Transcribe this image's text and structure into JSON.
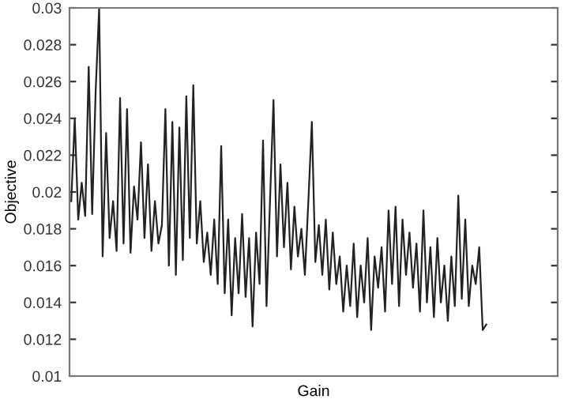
{
  "chart_data": {
    "type": "line",
    "xlabel": "Gain",
    "ylabel": "Objective",
    "categories": [
      null,
      null,
      null,
      null,
      null,
      null,
      null,
      null,
      null,
      null,
      null,
      null,
      null,
      null,
      null,
      null,
      null,
      null,
      null,
      null,
      null,
      null,
      null,
      null,
      null,
      null,
      null,
      null,
      null,
      null,
      null,
      null,
      null,
      null,
      null,
      null,
      null,
      null,
      null,
      null,
      null,
      null,
      null,
      null,
      null,
      null,
      null,
      null,
      null,
      null,
      null,
      null,
      null,
      null,
      null,
      null,
      null,
      null,
      null,
      null,
      null,
      null,
      null,
      null,
      null,
      null,
      null,
      null,
      null,
      null,
      null,
      null,
      null,
      null,
      null,
      null,
      null,
      null,
      null,
      null,
      null,
      null,
      null,
      null,
      null,
      null,
      null,
      null,
      null,
      null,
      null,
      null,
      null,
      null,
      null,
      null,
      null,
      null,
      null,
      null,
      null,
      null,
      null,
      null,
      null,
      null,
      null,
      null,
      null,
      null,
      null,
      null,
      null,
      null,
      null,
      null,
      null,
      null,
      null,
      null,
      null,
      null,
      null,
      null,
      null,
      null,
      null,
      null,
      null,
      null,
      null,
      null,
      null,
      null,
      null,
      null,
      null,
      null,
      null,
      null
    ],
    "series": [
      {
        "color": "#222222",
        "values": [
          0.0195,
          0.024,
          0.0185,
          0.0205,
          0.0187,
          0.0268,
          0.0188,
          0.0255,
          0.03,
          0.0165,
          0.0232,
          0.0175,
          0.0195,
          0.0168,
          0.0251,
          0.0172,
          0.0245,
          0.0167,
          0.0203,
          0.0185,
          0.0227,
          0.0175,
          0.0215,
          0.0168,
          0.0195,
          0.0172,
          0.0182,
          0.0245,
          0.016,
          0.0238,
          0.0155,
          0.0235,
          0.0163,
          0.0252,
          0.0175,
          0.0258,
          0.0172,
          0.0195,
          0.0162,
          0.0178,
          0.0155,
          0.0185,
          0.015,
          0.0225,
          0.0145,
          0.0185,
          0.0133,
          0.0175,
          0.0145,
          0.0188,
          0.0143,
          0.0175,
          0.0127,
          0.0178,
          0.015,
          0.0228,
          0.0138,
          0.0195,
          0.025,
          0.0165,
          0.0215,
          0.017,
          0.0205,
          0.0158,
          0.0192,
          0.0165,
          0.018,
          0.0155,
          0.0195,
          0.0238,
          0.0162,
          0.0182,
          0.0155,
          0.0185,
          0.0147,
          0.0178,
          0.015,
          0.0165,
          0.0135,
          0.016,
          0.0138,
          0.0172,
          0.0132,
          0.016,
          0.014,
          0.0175,
          0.0125,
          0.0165,
          0.0148,
          0.017,
          0.0135,
          0.019,
          0.015,
          0.0192,
          0.0138,
          0.0185,
          0.0155,
          0.0178,
          0.0148,
          0.0172,
          0.0135,
          0.019,
          0.014,
          0.017,
          0.0132,
          0.0175,
          0.014,
          0.016,
          0.013,
          0.0165,
          0.0138,
          0.0198,
          0.0142,
          0.0185,
          0.0138,
          0.016,
          0.015,
          0.017,
          0.0125,
          0.0128,
          null,
          null,
          null,
          null,
          null,
          null,
          null,
          null,
          null,
          null,
          null,
          null,
          null,
          null,
          null,
          null,
          null,
          null,
          null,
          null
        ]
      }
    ],
    "ylim": [
      0.01,
      0.03
    ],
    "yticks": [
      0.01,
      0.012,
      0.014,
      0.016,
      0.018,
      0.02,
      0.022,
      0.024,
      0.026,
      0.028,
      0.03
    ],
    "tick_labels": "y",
    "grid": false,
    "legend": false,
    "marker": "none",
    "line_style": "solid"
  }
}
